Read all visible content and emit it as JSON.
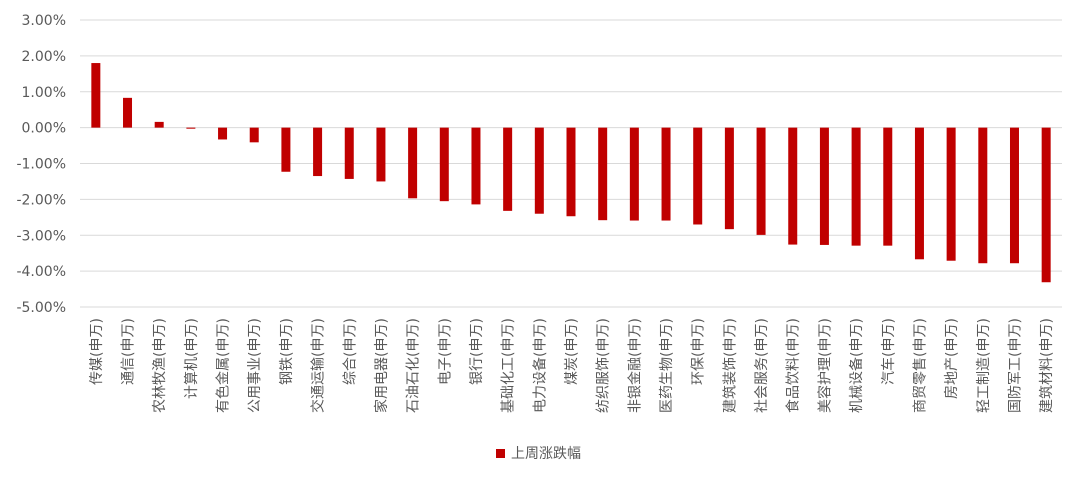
{
  "chart_data": {
    "type": "bar",
    "categories": [
      "传媒(申万)",
      "通信(申万)",
      "农林牧渔(申万)",
      "计算机(申万)",
      "有色金属(申万)",
      "公用事业(申万)",
      "钢铁(申万)",
      "交通运输(申万)",
      "综合(申万)",
      "家用电器(申万)",
      "石油石化(申万)",
      "电子(申万)",
      "银行(申万)",
      "基础化工(申万)",
      "电力设备(申万)",
      "煤炭(申万)",
      "纺织服饰(申万)",
      "非银金融(申万)",
      "医药生物(申万)",
      "环保(申万)",
      "建筑装饰(申万)",
      "社会服务(申万)",
      "食品饮料(申万)",
      "美容护理(申万)",
      "机械设备(申万)",
      "汽车(申万)",
      "商贸零售(申万)",
      "房地产(申万)",
      "轻工制造(申万)",
      "国防军工(申万)",
      "建筑材料(申万)"
    ],
    "series": [
      {
        "name": "上周涨跌幅",
        "values": [
          1.8,
          0.83,
          0.16,
          -0.03,
          -0.33,
          -0.41,
          -1.23,
          -1.35,
          -1.43,
          -1.5,
          -1.97,
          -2.05,
          -2.14,
          -2.32,
          -2.4,
          -2.47,
          -2.58,
          -2.59,
          -2.59,
          -2.7,
          -2.83,
          -2.99,
          -3.26,
          -3.27,
          -3.29,
          -3.29,
          -3.67,
          -3.71,
          -3.78,
          -3.78,
          -4.31
        ],
        "color": "#C00000"
      }
    ],
    "ylim": [
      -5,
      3
    ],
    "yticks": [
      "3.00%",
      "2.00%",
      "1.00%",
      "0.00%",
      "-1.00%",
      "-2.00%",
      "-3.00%",
      "-4.00%",
      "-5.00%"
    ],
    "ytick_values": [
      3,
      2,
      1,
      0,
      -1,
      -2,
      -3,
      -4,
      -5
    ],
    "grid": true,
    "legend_position": "bottom"
  },
  "legend": {
    "label": "上周涨跌幅"
  }
}
